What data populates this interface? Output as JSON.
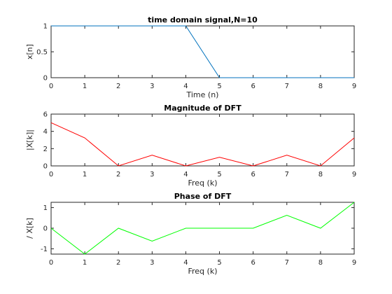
{
  "chart_data": [
    {
      "type": "line",
      "title": "time domain signal,N=10",
      "xlabel": "Time (n)",
      "ylabel": "x[n]",
      "x": [
        0,
        1,
        2,
        3,
        4,
        5,
        6,
        7,
        8,
        9
      ],
      "series": [
        {
          "values": [
            1,
            1,
            1,
            1,
            1,
            0,
            0,
            0,
            0,
            0
          ],
          "color": "#0072bd"
        }
      ],
      "xlim": [
        0,
        9
      ],
      "ylim": [
        0,
        1
      ],
      "xticks": [
        0,
        1,
        2,
        3,
        4,
        5,
        6,
        7,
        8,
        9
      ],
      "xtick_labels": [
        "0",
        "1",
        "2",
        "3",
        "4",
        "5",
        "6",
        "7",
        "8",
        "9"
      ],
      "yticks": [
        0,
        0.5,
        1
      ],
      "ytick_labels": [
        "0",
        "0.5",
        "1"
      ],
      "grid": false
    },
    {
      "type": "line",
      "title": "Magnitude of DFT",
      "xlabel": "Freq (k)",
      "ylabel": "|X[k]|",
      "x": [
        0,
        1,
        2,
        3,
        4,
        5,
        6,
        7,
        8,
        9
      ],
      "series": [
        {
          "values": [
            5,
            3.24,
            0,
            1.24,
            0,
            1,
            0,
            1.24,
            0,
            3.24
          ],
          "color": "#ff0000"
        }
      ],
      "xlim": [
        0,
        9
      ],
      "ylim": [
        0,
        6
      ],
      "xticks": [
        0,
        1,
        2,
        3,
        4,
        5,
        6,
        7,
        8,
        9
      ],
      "xtick_labels": [
        "0",
        "1",
        "2",
        "3",
        "4",
        "5",
        "6",
        "7",
        "8",
        "9"
      ],
      "yticks": [
        0,
        2,
        4,
        6
      ],
      "ytick_labels": [
        "0",
        "2",
        "4",
        "6"
      ],
      "grid": false
    },
    {
      "type": "line",
      "title": "Phase of DFT",
      "xlabel": "Freq (k)",
      "ylabel": "/ X[k]",
      "x": [
        0,
        1,
        2,
        3,
        4,
        5,
        6,
        7,
        8,
        9
      ],
      "series": [
        {
          "values": [
            0,
            -1.257,
            0,
            -0.628,
            0,
            0,
            0,
            0.628,
            0,
            1.257
          ],
          "color": "#00ff00"
        }
      ],
      "xlim": [
        0,
        9
      ],
      "ylim": [
        -1.257,
        1.257
      ],
      "xticks": [
        0,
        1,
        2,
        3,
        4,
        5,
        6,
        7,
        8,
        9
      ],
      "xtick_labels": [
        "0",
        "1",
        "2",
        "3",
        "4",
        "5",
        "6",
        "7",
        "8",
        "9"
      ],
      "yticks": [
        -1,
        0,
        1
      ],
      "ytick_labels": [
        "-1",
        "0",
        "1"
      ],
      "grid": false
    }
  ]
}
